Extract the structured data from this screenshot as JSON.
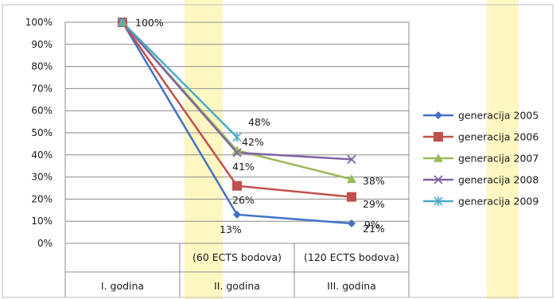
{
  "chart_data": {
    "type": "line",
    "categories": [
      {
        "sub": "",
        "label": "I. godina"
      },
      {
        "sub": "(60 ECTS bodova)",
        "label": "II. godina"
      },
      {
        "sub": "(120 ECTS bodova)",
        "label": "III. godina"
      }
    ],
    "ylim": [
      0,
      100
    ],
    "ytick_step": 10,
    "ytick_labels": [
      "0%",
      "10%",
      "20%",
      "30%",
      "40%",
      "50%",
      "60%",
      "70%",
      "80%",
      "90%",
      "100%"
    ],
    "grid": true,
    "legend_position": "right",
    "series": [
      {
        "name": "generacija 2005",
        "color": "#4472C4",
        "marker": "diamond",
        "values": [
          100,
          13,
          9
        ]
      },
      {
        "name": "generacija 2006",
        "color": "#C0504D",
        "marker": "square",
        "values": [
          100,
          26,
          21
        ]
      },
      {
        "name": "generacija 2007",
        "color": "#9BBB59",
        "marker": "triangle",
        "values": [
          100,
          42,
          null
        ],
        "values_full": [
          100,
          42,
          29
        ]
      },
      {
        "name": "generacija 2008",
        "color": "#8064A2",
        "marker": "x",
        "values": [
          100,
          41,
          38
        ]
      },
      {
        "name": "generacija 2009",
        "color": "#4BACC6",
        "marker": "star",
        "values": [
          100,
          48,
          null
        ]
      }
    ],
    "data_labels": [
      {
        "text": "100%"
      },
      {
        "text": "48%"
      },
      {
        "text": "42%"
      },
      {
        "text": "41%"
      },
      {
        "text": "26%"
      },
      {
        "text": "13%"
      },
      {
        "text": "38%"
      },
      {
        "text": "29%"
      },
      {
        "text": "21%"
      },
      {
        "text": "9%"
      }
    ]
  }
}
